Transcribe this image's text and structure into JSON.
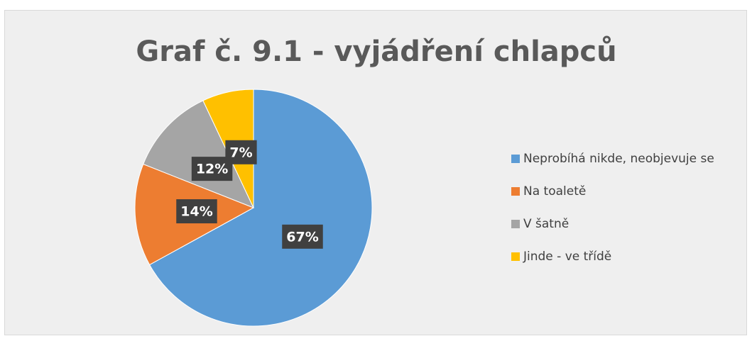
{
  "chart_data": {
    "type": "pie",
    "title": "Graf č. 9.1 - vyjádření chlapců",
    "categories": [
      "Neprobíhá nikde, neobjevuje se",
      "Na toaletě",
      "V šatně",
      "Jinde - ve třídě"
    ],
    "values": [
      67,
      14,
      12,
      7
    ],
    "value_labels": [
      "67%",
      "14%",
      "12%",
      "7%"
    ],
    "colors": [
      "#5b9bd5",
      "#ed7d31",
      "#a5a5a5",
      "#ffc000"
    ],
    "legend": "right"
  }
}
